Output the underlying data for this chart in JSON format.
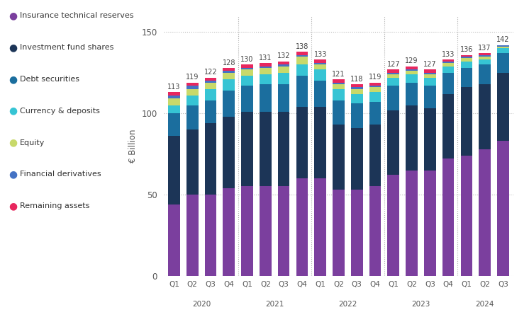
{
  "categories_q": [
    "Q1",
    "Q2",
    "Q3",
    "Q4",
    "Q1",
    "Q2",
    "Q3",
    "Q4",
    "Q1",
    "Q2",
    "Q3",
    "Q4",
    "Q1",
    "Q2",
    "Q3",
    "Q4",
    "Q1",
    "Q2",
    "Q3"
  ],
  "year_labels": [
    "2020",
    "2021",
    "2022",
    "2023",
    "2024"
  ],
  "year_center_indices": [
    1.5,
    5.5,
    9.5,
    13.5,
    17.0
  ],
  "totals": [
    113,
    119,
    122,
    128,
    130,
    131,
    132,
    138,
    133,
    121,
    118,
    119,
    127,
    129,
    127,
    133,
    136,
    137,
    142
  ],
  "series": [
    {
      "name": "Insurance technical reserves",
      "color": "#7b3f9e",
      "values": [
        44,
        50,
        50,
        54,
        55,
        55,
        55,
        60,
        60,
        53,
        53,
        55,
        62,
        65,
        65,
        72,
        74,
        78,
        83
      ]
    },
    {
      "name": "Investment fund shares",
      "color": "#1c3557",
      "values": [
        42,
        40,
        44,
        44,
        46,
        46,
        46,
        44,
        44,
        40,
        38,
        38,
        40,
        40,
        38,
        40,
        42,
        40,
        42
      ]
    },
    {
      "name": "Debt securities",
      "color": "#1b6e9e",
      "values": [
        14,
        15,
        14,
        16,
        16,
        17,
        17,
        19,
        16,
        15,
        15,
        14,
        15,
        14,
        14,
        13,
        12,
        12,
        12
      ]
    },
    {
      "name": "Currency & deposits",
      "color": "#36c4d4",
      "values": [
        5,
        6,
        7,
        7,
        6,
        6,
        7,
        7,
        7,
        7,
        6,
        6,
        5,
        5,
        5,
        4,
        4,
        3,
        3
      ]
    },
    {
      "name": "Equity",
      "color": "#c8d96a",
      "values": [
        4,
        4,
        4,
        4,
        4,
        4,
        4,
        5,
        3,
        3,
        3,
        3,
        2,
        2,
        2,
        2,
        2,
        2,
        1
      ]
    },
    {
      "name": "Financial derivatives",
      "color": "#4472c4",
      "values": [
        2,
        2,
        1,
        1,
        1,
        1,
        1,
        1,
        1,
        1,
        1,
        1,
        1,
        1,
        1,
        1,
        1,
        1,
        1
      ]
    },
    {
      "name": "Remaining assets",
      "color": "#e8275e",
      "values": [
        2,
        2,
        2,
        2,
        2,
        2,
        2,
        2,
        2,
        2,
        2,
        2,
        2,
        2,
        2,
        1,
        1,
        1,
        0
      ]
    }
  ],
  "ylabel": "€ Billion",
  "ylim": [
    0,
    160
  ],
  "yticks": [
    0,
    50,
    100,
    150
  ],
  "background_color": "#ffffff",
  "bar_width": 0.65,
  "year_boundaries": [
    3.5,
    7.5,
    11.5,
    15.5
  ]
}
